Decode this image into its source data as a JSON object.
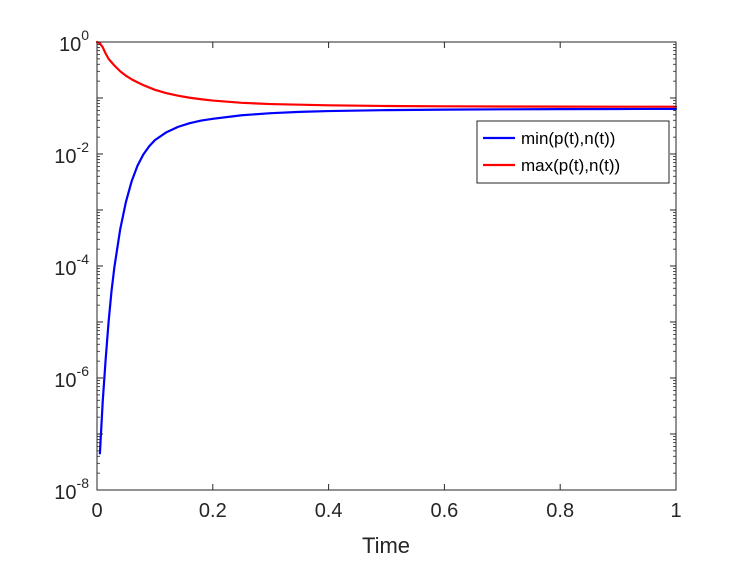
{
  "chart_data": {
    "type": "line",
    "title": "",
    "xlabel": "Time",
    "ylabel": "",
    "xlim": [
      0,
      1
    ],
    "ylim": [
      1e-08,
      1
    ],
    "yscale": "log",
    "grid": false,
    "legend_position": "top-right",
    "x_ticks": [
      {
        "value": 0,
        "label": "0"
      },
      {
        "value": 0.2,
        "label": "0.2"
      },
      {
        "value": 0.4,
        "label": "0.4"
      },
      {
        "value": 0.6,
        "label": "0.6"
      },
      {
        "value": 0.8,
        "label": "0.8"
      },
      {
        "value": 1,
        "label": "1"
      }
    ],
    "y_ticks": [
      {
        "value": 1,
        "base": "10",
        "exp": "0"
      },
      {
        "value": 0.01,
        "base": "10",
        "exp": "-2"
      },
      {
        "value": 0.0001,
        "base": "10",
        "exp": "-4"
      },
      {
        "value": 1e-06,
        "base": "10",
        "exp": "-6"
      },
      {
        "value": 1e-08,
        "base": "10",
        "exp": "-8"
      }
    ],
    "series": [
      {
        "name": "min(p(t),n(t))",
        "color": "#0000ff",
        "x": [
          0.005,
          0.01,
          0.015,
          0.02,
          0.025,
          0.03,
          0.04,
          0.05,
          0.06,
          0.07,
          0.08,
          0.09,
          0.1,
          0.12,
          0.14,
          0.16,
          0.18,
          0.2,
          0.25,
          0.3,
          0.35,
          0.4,
          0.5,
          0.6,
          0.7,
          0.8,
          0.9,
          1.0
        ],
        "y": [
          4.5e-08,
          4e-07,
          2.2e-06,
          1e-05,
          3.5e-05,
          9.5e-05,
          0.00045,
          0.0014,
          0.0033,
          0.0062,
          0.0098,
          0.0137,
          0.0177,
          0.0245,
          0.0305,
          0.0355,
          0.0395,
          0.0425,
          0.0492,
          0.0535,
          0.0565,
          0.0585,
          0.0608,
          0.062,
          0.0628,
          0.0633,
          0.0637,
          0.064
        ]
      },
      {
        "name": "max(p(t),n(t))",
        "color": "#ff0000",
        "x": [
          0.0,
          0.005,
          0.01,
          0.015,
          0.02,
          0.03,
          0.04,
          0.05,
          0.06,
          0.07,
          0.08,
          0.1,
          0.12,
          0.14,
          0.16,
          0.18,
          0.2,
          0.25,
          0.3,
          0.35,
          0.4,
          0.5,
          0.6,
          0.7,
          0.8,
          0.9,
          1.0
        ],
        "y": [
          1.0,
          0.95,
          0.8,
          0.62,
          0.5,
          0.38,
          0.3,
          0.25,
          0.215,
          0.19,
          0.17,
          0.14,
          0.122,
          0.11,
          0.101,
          0.095,
          0.09,
          0.082,
          0.078,
          0.076,
          0.074,
          0.072,
          0.071,
          0.0705,
          0.0702,
          0.07,
          0.07
        ]
      }
    ]
  }
}
